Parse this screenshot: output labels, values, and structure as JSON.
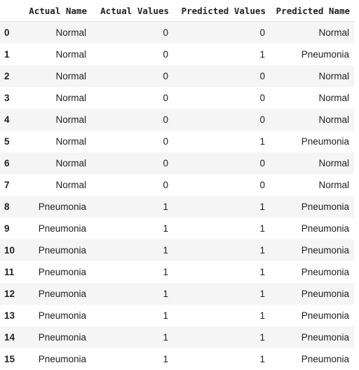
{
  "table": {
    "columns": [
      "Actual Name",
      "Actual Values",
      "Predicted Values",
      "Predicted Name"
    ],
    "rows": [
      {
        "index": "0",
        "cells": [
          "Normal",
          "0",
          "0",
          "Normal"
        ]
      },
      {
        "index": "1",
        "cells": [
          "Normal",
          "0",
          "1",
          "Pneumonia"
        ]
      },
      {
        "index": "2",
        "cells": [
          "Normal",
          "0",
          "0",
          "Normal"
        ]
      },
      {
        "index": "3",
        "cells": [
          "Normal",
          "0",
          "0",
          "Normal"
        ]
      },
      {
        "index": "4",
        "cells": [
          "Normal",
          "0",
          "0",
          "Normal"
        ]
      },
      {
        "index": "5",
        "cells": [
          "Normal",
          "0",
          "1",
          "Pneumonia"
        ]
      },
      {
        "index": "6",
        "cells": [
          "Normal",
          "0",
          "0",
          "Normal"
        ]
      },
      {
        "index": "7",
        "cells": [
          "Normal",
          "0",
          "0",
          "Normal"
        ]
      },
      {
        "index": "8",
        "cells": [
          "Pneumonia",
          "1",
          "1",
          "Pneumonia"
        ]
      },
      {
        "index": "9",
        "cells": [
          "Pneumonia",
          "1",
          "1",
          "Pneumonia"
        ]
      },
      {
        "index": "10",
        "cells": [
          "Pneumonia",
          "1",
          "1",
          "Pneumonia"
        ]
      },
      {
        "index": "11",
        "cells": [
          "Pneumonia",
          "1",
          "1",
          "Pneumonia"
        ]
      },
      {
        "index": "12",
        "cells": [
          "Pneumonia",
          "1",
          "1",
          "Pneumonia"
        ]
      },
      {
        "index": "13",
        "cells": [
          "Pneumonia",
          "1",
          "1",
          "Pneumonia"
        ]
      },
      {
        "index": "14",
        "cells": [
          "Pneumonia",
          "1",
          "1",
          "Pneumonia"
        ]
      },
      {
        "index": "15",
        "cells": [
          "Pneumonia",
          "1",
          "1",
          "Pneumonia"
        ]
      }
    ]
  }
}
